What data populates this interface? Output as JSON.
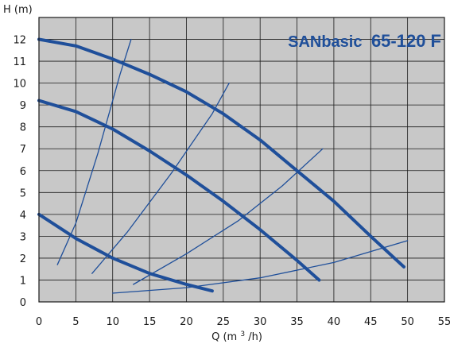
{
  "chart_data": {
    "type": "line",
    "title_main": "SANbasic",
    "title_model": "65-120 F",
    "xlabel": "Q",
    "xlabel_unit_base": "(m",
    "xlabel_unit_exp": "3",
    "xlabel_unit_tail": "/h)",
    "ylabel": "H (m)",
    "xlim": [
      0,
      55
    ],
    "ylim": [
      0,
      13
    ],
    "x_ticks": [
      0,
      5,
      10,
      15,
      20,
      25,
      30,
      35,
      40,
      45,
      50,
      55
    ],
    "y_ticks": [
      0,
      1,
      2,
      3,
      4,
      5,
      6,
      7,
      8,
      9,
      10,
      11,
      12
    ],
    "grid": true,
    "colors": {
      "background": "#c8c8c8",
      "grid": "#1a1a1a",
      "curve": "#1f4f9a",
      "title": "#1f4f9a"
    },
    "pump_curves": [
      {
        "x": [
          0,
          5,
          10,
          15,
          20,
          25,
          30,
          35,
          40,
          45,
          49.5
        ],
        "y": [
          12.0,
          11.7,
          11.1,
          10.4,
          9.6,
          8.6,
          7.4,
          6.0,
          4.6,
          3.0,
          1.6
        ]
      },
      {
        "x": [
          0,
          5,
          10,
          15,
          20,
          25,
          30,
          35,
          38
        ],
        "y": [
          9.2,
          8.7,
          7.9,
          6.9,
          5.8,
          4.6,
          3.3,
          1.9,
          1.0
        ]
      },
      {
        "x": [
          0,
          5,
          10,
          15,
          20,
          23.5
        ],
        "y": [
          4.0,
          2.9,
          2.0,
          1.3,
          0.8,
          0.5
        ]
      }
    ],
    "system_curves": [
      {
        "x": [
          2.5,
          5,
          8,
          11,
          12.5
        ],
        "y": [
          1.7,
          3.6,
          6.8,
          10.4,
          12.0
        ]
      },
      {
        "x": [
          7.2,
          12,
          18,
          23.5,
          25.8
        ],
        "y": [
          1.3,
          3.2,
          5.9,
          8.6,
          10.0
        ]
      },
      {
        "x": [
          12.8,
          20,
          27,
          33,
          38.5
        ],
        "y": [
          0.8,
          2.2,
          3.7,
          5.3,
          7.0
        ]
      },
      {
        "x": [
          10,
          20,
          30,
          40,
          50
        ],
        "y": [
          0.4,
          0.65,
          1.1,
          1.8,
          2.8
        ]
      }
    ]
  }
}
